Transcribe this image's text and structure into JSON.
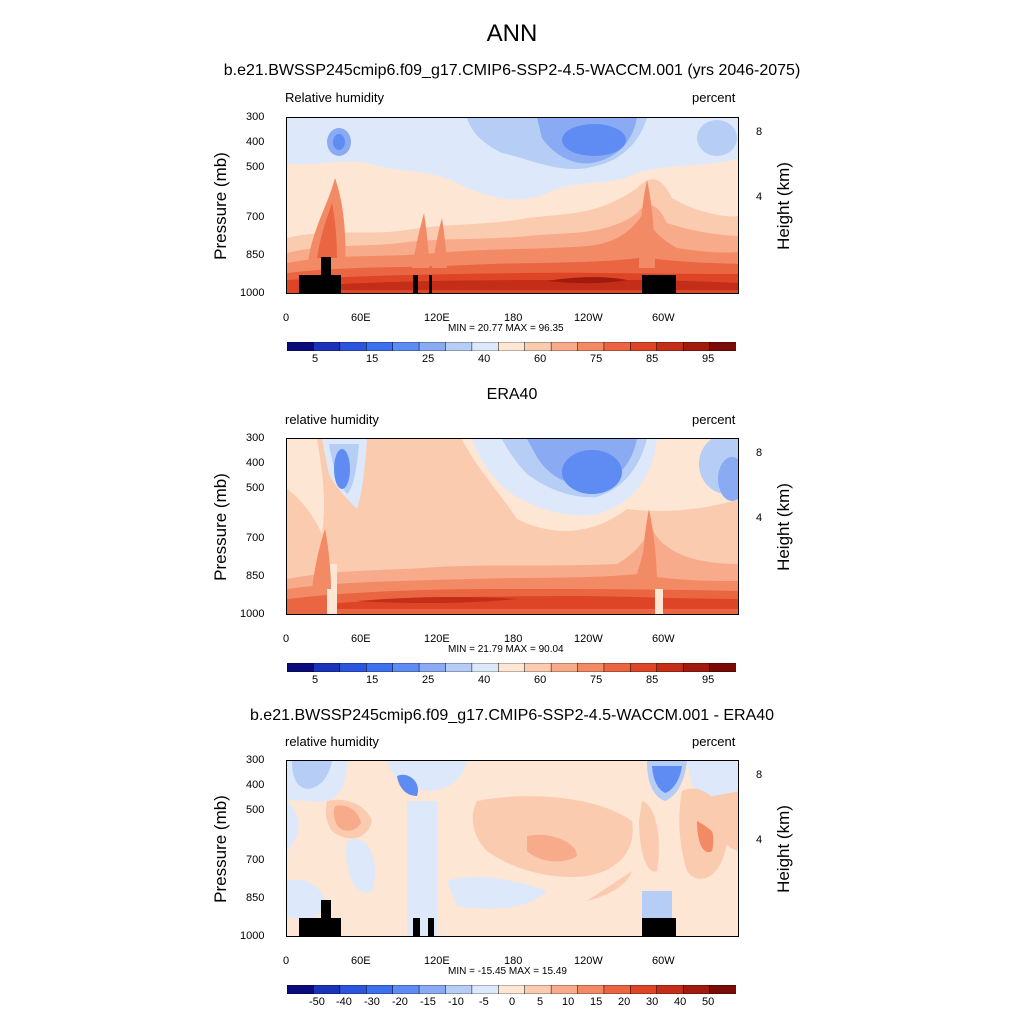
{
  "header": {
    "title": "ANN",
    "subtitle": "b.e21.BWSSP245cmip6.f09_g17.CMIP6-SSP2-4.5-WACCM.001 (yrs 2046-2075)"
  },
  "common": {
    "units": "percent",
    "ylabel": "Pressure (mb)",
    "y2label": "Height (km)",
    "yticks": [
      "300",
      "400",
      "500",
      "700",
      "850",
      "1000"
    ],
    "y2ticks": [
      "8",
      "4"
    ],
    "xticks": [
      "0",
      "60E",
      "120E",
      "180",
      "120W",
      "60W"
    ]
  },
  "colors": {
    "abs_levels": [
      "#0b0b7a",
      "#1a33b8",
      "#2a55dc",
      "#3c70ee",
      "#5f8cf2",
      "#8aaaf4",
      "#b6cdf6",
      "#dde9fa",
      "#fde6d4",
      "#fbcbb0",
      "#f8ab8a",
      "#f38a66",
      "#ea6541",
      "#dd4526",
      "#c42d17",
      "#a01b0d",
      "#7a0a05"
    ],
    "diff_levels": [
      "#0b0b7a",
      "#1a33b8",
      "#2a55dc",
      "#3c70ee",
      "#5f8cf2",
      "#8aaaf4",
      "#b6cdf6",
      "#dde9fa",
      "#fde6d4",
      "#fbcbb0",
      "#f8ab8a",
      "#f38a66",
      "#ea6541",
      "#dd4526",
      "#c42d17",
      "#a01b0d",
      "#7a0a05"
    ],
    "mask": "#000000"
  },
  "panels": [
    {
      "name": "",
      "variable": "Relative humidity",
      "stats": "MIN =  20.77  MAX =  96.35",
      "colorbar_labels": [
        "5",
        "15",
        "25",
        "40",
        "60",
        "75",
        "85",
        "95"
      ]
    },
    {
      "name": "ERA40",
      "variable": "relative humidity",
      "stats": "MIN =  21.79  MAX =  90.04",
      "colorbar_labels": [
        "5",
        "15",
        "25",
        "40",
        "60",
        "75",
        "85",
        "95"
      ]
    },
    {
      "name": "b.e21.BWSSP245cmip6.f09_g17.CMIP6-SSP2-4.5-WACCM.001 - ERA40",
      "variable": "relative humidity",
      "stats": "MIN = -15.45  MAX =  15.49",
      "colorbar_labels": [
        "-50",
        "-40",
        "-30",
        "-20",
        "-15",
        "-10",
        "-5",
        "0",
        "5",
        "10",
        "15",
        "20",
        "30",
        "40",
        "50"
      ]
    }
  ],
  "chart_data": [
    {
      "type": "heatmap",
      "title": "Relative humidity",
      "units": "percent",
      "x": "longitude 0 to 360",
      "y": "pressure 1000 to 300 mb",
      "min": 20.77,
      "max": 96.35,
      "levels": [
        5,
        10,
        15,
        20,
        25,
        30,
        40,
        50,
        60,
        70,
        75,
        80,
        85,
        90,
        95
      ]
    },
    {
      "type": "heatmap",
      "title": "ERA40",
      "units": "percent",
      "min": 21.79,
      "max": 90.04,
      "levels": [
        5,
        10,
        15,
        20,
        25,
        30,
        40,
        50,
        60,
        70,
        75,
        80,
        85,
        90,
        95
      ]
    },
    {
      "type": "heatmap",
      "title": "b.e21.BWSSP245cmip6.f09_g17.CMIP6-SSP2-4.5-WACCM.001 - ERA40",
      "units": "percent",
      "min": -15.45,
      "max": 15.49,
      "levels": [
        -50,
        -40,
        -30,
        -20,
        -15,
        -10,
        -5,
        0,
        5,
        10,
        15,
        20,
        30,
        40,
        50
      ]
    }
  ]
}
